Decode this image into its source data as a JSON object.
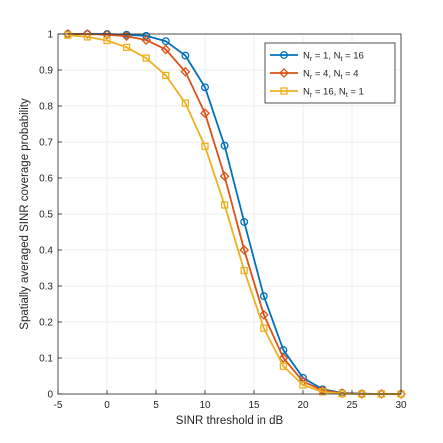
{
  "chart_data": {
    "type": "line",
    "xlabel": "SINR threshold in dB",
    "ylabel": "Spatially averaged SINR coverage probability",
    "xlim": [
      -5,
      30
    ],
    "ylim": [
      0,
      1
    ],
    "xticks": [
      -5,
      0,
      5,
      10,
      15,
      20,
      25,
      30
    ],
    "yticks": [
      0,
      0.1,
      0.2,
      0.3,
      0.4,
      0.5,
      0.6,
      0.7,
      0.8,
      0.9,
      1
    ],
    "xtick_labels": [
      "-5",
      "0",
      "5",
      "10",
      "15",
      "20",
      "25",
      "30"
    ],
    "ytick_labels": [
      "0",
      "0.1",
      "0.2",
      "0.3",
      "0.4",
      "0.5",
      "0.6",
      "0.7",
      "0.8",
      "0.9",
      "1"
    ],
    "grid": true,
    "legend_position": "top-right",
    "x": [
      -4,
      -2,
      0,
      2,
      4,
      6,
      8,
      10,
      12,
      14,
      16,
      18,
      20,
      22,
      24,
      26,
      28,
      30
    ],
    "series": [
      {
        "legend": {
          "a": "N",
          "a_sub": "r",
          "b": " = 1, N",
          "b_sub": "t",
          "c": " = 16"
        },
        "color": "#0072BD",
        "marker": "circle",
        "values": [
          1.0,
          1.0,
          1.0,
          0.998,
          0.995,
          0.98,
          0.94,
          0.852,
          0.69,
          0.478,
          0.272,
          0.122,
          0.045,
          0.013,
          0.003,
          0.001,
          0.0,
          0.0
        ]
      },
      {
        "legend": {
          "a": "N",
          "a_sub": "r",
          "b": " = 4, N",
          "b_sub": "t",
          "c": " = 4"
        },
        "color": "#D95319",
        "marker": "diamond",
        "values": [
          1.0,
          1.0,
          0.998,
          0.994,
          0.983,
          0.957,
          0.895,
          0.78,
          0.605,
          0.4,
          0.22,
          0.1,
          0.035,
          0.01,
          0.002,
          0.0,
          0.0,
          0.0
        ]
      },
      {
        "legend": {
          "a": "N",
          "a_sub": "r",
          "b": " = 16, N",
          "b_sub": "t",
          "c": " = 1"
        },
        "color": "#EDB120",
        "marker": "square",
        "values": [
          0.997,
          0.992,
          0.982,
          0.963,
          0.933,
          0.885,
          0.808,
          0.688,
          0.525,
          0.343,
          0.183,
          0.077,
          0.025,
          0.006,
          0.001,
          0.0,
          0.0,
          0.0
        ]
      }
    ]
  }
}
